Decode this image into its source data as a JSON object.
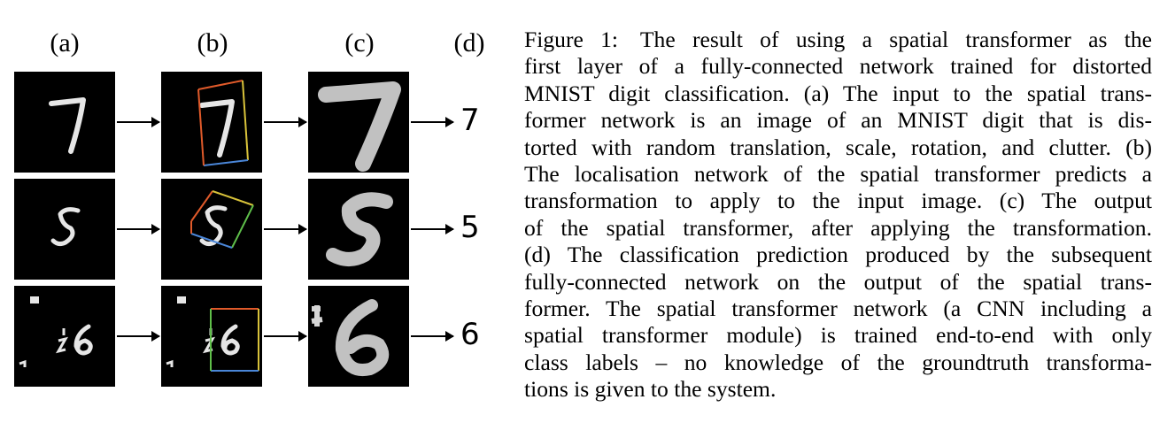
{
  "columns": {
    "a": "(a)",
    "b": "(b)",
    "c": "(c)",
    "d": "(d)"
  },
  "rows": [
    {
      "input_digit": "7",
      "output_digit": "7",
      "prediction": "7"
    },
    {
      "input_digit": "5",
      "output_digit": "5",
      "prediction": "5"
    },
    {
      "input_digit": "6",
      "output_digit": "6",
      "prediction": "6"
    }
  ],
  "caption": {
    "label": "Figure 1:",
    "lines": [
      "The result of using a spatial transformer as the",
      "first layer of a fully-connected network trained for distorted",
      "MNIST digit classification. (a) The input to the spatial trans-",
      "former network is an image of an MNIST digit that is dis-",
      "torted with random translation, scale, rotation, and clutter. (b)",
      "The localisation network of the spatial transformer predicts a",
      "transformation to apply to the input image. (c) The output",
      "of the spatial transformer, after applying the transformation.",
      "(d) The classification prediction produced by the subsequent",
      "fully-connected network on the output of the spatial trans-",
      "former. The spatial transformer network (a CNN including a",
      "spatial transformer module) is trained end-to-end with only",
      "class labels – no knowledge of the groundtruth transforma-",
      "tions is given to the system."
    ]
  },
  "colors": {
    "tile_background": "#000000",
    "digit_stroke": "#e6e6e6",
    "box_red": "#e05a2a",
    "box_yellow": "#d8c23a",
    "box_green": "#5fbf4a",
    "box_blue": "#4a86d8"
  }
}
